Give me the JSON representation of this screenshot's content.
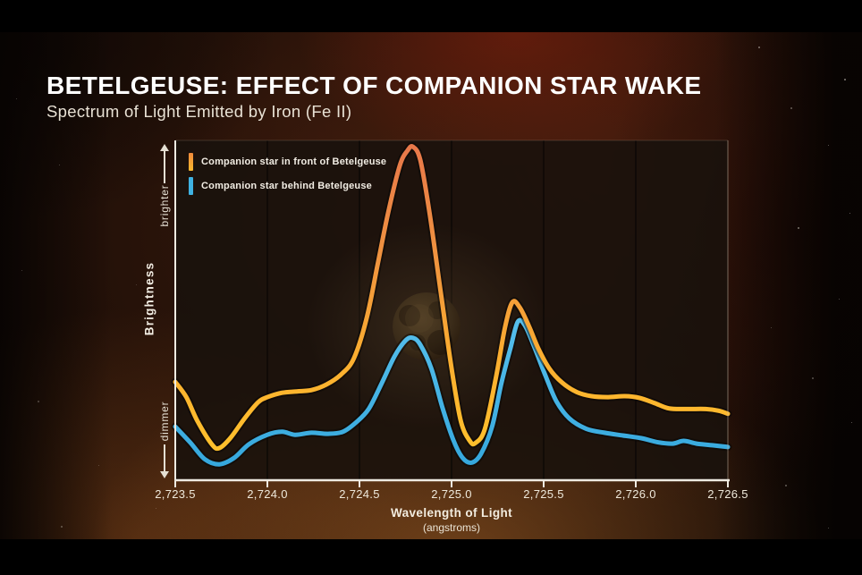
{
  "header": {
    "title": "BETELGEUSE: EFFECT OF COMPANION STAR WAKE",
    "subtitle": "Spectrum of Light Emitted by Iron (Fe II)"
  },
  "chart_data": {
    "type": "line",
    "title": "Spectrum of Light Emitted by Iron (Fe II)",
    "xlabel": "Wavelength of Light",
    "xunit": "(angstroms)",
    "ylabel": "Brightness",
    "y_axis_qualitative": [
      "dimmer",
      "brighter"
    ],
    "xlim": [
      2723.5,
      2726.5
    ],
    "ylim_relative": [
      0,
      1
    ],
    "grid": "vertical-gridlines-every-0.5-angstrom",
    "legend_position": "top-left",
    "xticks": {
      "values": [
        2723.5,
        2724.0,
        2724.5,
        2725.0,
        2725.5,
        2726.0,
        2726.5
      ],
      "labels": [
        "2,723.5",
        "2,724.0",
        "2,724.5",
        "2,725.0",
        "2,725.5",
        "2,726.0",
        "2,726.5"
      ]
    },
    "series": [
      {
        "name": "Companion star behind Betelgeuse",
        "color": "#3FB2E2",
        "points": [
          [
            2723.5,
            0.158
          ],
          [
            2723.58,
            0.112
          ],
          [
            2723.66,
            0.062
          ],
          [
            2723.74,
            0.047
          ],
          [
            2723.82,
            0.066
          ],
          [
            2723.9,
            0.106
          ],
          [
            2724.0,
            0.134
          ],
          [
            2724.08,
            0.143
          ],
          [
            2724.15,
            0.134
          ],
          [
            2724.24,
            0.14
          ],
          [
            2724.33,
            0.137
          ],
          [
            2724.41,
            0.143
          ],
          [
            2724.48,
            0.17
          ],
          [
            2724.55,
            0.21
          ],
          [
            2724.62,
            0.285
          ],
          [
            2724.69,
            0.365
          ],
          [
            2724.75,
            0.412
          ],
          [
            2724.79,
            0.42
          ],
          [
            2724.83,
            0.4
          ],
          [
            2724.89,
            0.33
          ],
          [
            2724.95,
            0.215
          ],
          [
            2725.01,
            0.118
          ],
          [
            2725.06,
            0.066
          ],
          [
            2725.11,
            0.052
          ],
          [
            2725.16,
            0.078
          ],
          [
            2725.22,
            0.158
          ],
          [
            2725.27,
            0.285
          ],
          [
            2725.32,
            0.39
          ],
          [
            2725.36,
            0.468
          ],
          [
            2725.4,
            0.455
          ],
          [
            2725.45,
            0.392
          ],
          [
            2725.51,
            0.308
          ],
          [
            2725.57,
            0.232
          ],
          [
            2725.64,
            0.182
          ],
          [
            2725.73,
            0.152
          ],
          [
            2725.83,
            0.14
          ],
          [
            2725.93,
            0.132
          ],
          [
            2726.03,
            0.124
          ],
          [
            2726.12,
            0.112
          ],
          [
            2726.2,
            0.108
          ],
          [
            2726.26,
            0.116
          ],
          [
            2726.33,
            0.108
          ],
          [
            2726.42,
            0.103
          ],
          [
            2726.5,
            0.098
          ]
        ]
      },
      {
        "name": "Companion star in front of Betelgeuse",
        "color": "#F5A030",
        "points": [
          [
            2723.5,
            0.29
          ],
          [
            2723.56,
            0.245
          ],
          [
            2723.62,
            0.175
          ],
          [
            2723.7,
            0.105
          ],
          [
            2723.74,
            0.095
          ],
          [
            2723.8,
            0.125
          ],
          [
            2723.88,
            0.185
          ],
          [
            2723.95,
            0.23
          ],
          [
            2724.0,
            0.245
          ],
          [
            2724.08,
            0.258
          ],
          [
            2724.16,
            0.262
          ],
          [
            2724.24,
            0.266
          ],
          [
            2724.32,
            0.282
          ],
          [
            2724.4,
            0.312
          ],
          [
            2724.47,
            0.36
          ],
          [
            2724.54,
            0.48
          ],
          [
            2724.6,
            0.64
          ],
          [
            2724.66,
            0.8
          ],
          [
            2724.72,
            0.93
          ],
          [
            2724.76,
            0.972
          ],
          [
            2724.79,
            0.984
          ],
          [
            2724.83,
            0.945
          ],
          [
            2724.88,
            0.79
          ],
          [
            2724.94,
            0.56
          ],
          [
            2725.0,
            0.33
          ],
          [
            2725.05,
            0.175
          ],
          [
            2725.1,
            0.115
          ],
          [
            2725.13,
            0.11
          ],
          [
            2725.18,
            0.15
          ],
          [
            2725.24,
            0.3
          ],
          [
            2725.29,
            0.45
          ],
          [
            2725.33,
            0.525
          ],
          [
            2725.37,
            0.51
          ],
          [
            2725.42,
            0.455
          ],
          [
            2725.47,
            0.39
          ],
          [
            2725.53,
            0.33
          ],
          [
            2725.6,
            0.288
          ],
          [
            2725.68,
            0.26
          ],
          [
            2725.76,
            0.248
          ],
          [
            2725.85,
            0.245
          ],
          [
            2725.94,
            0.248
          ],
          [
            2726.02,
            0.243
          ],
          [
            2726.1,
            0.228
          ],
          [
            2726.18,
            0.212
          ],
          [
            2726.28,
            0.21
          ],
          [
            2726.38,
            0.21
          ],
          [
            2726.45,
            0.205
          ],
          [
            2726.5,
            0.196
          ]
        ]
      }
    ],
    "legend_order": [
      "Companion star in front of Betelgeuse",
      "Companion star behind Betelgeuse"
    ]
  },
  "background": {
    "stars": [
      [
        848,
        52,
        2,
        0.5
      ],
      [
        884,
        120,
        2,
        0.4
      ],
      [
        944,
        88,
        2,
        0.55
      ],
      [
        926,
        162,
        1,
        0.45
      ],
      [
        892,
        254,
        2,
        0.5
      ],
      [
        938,
        334,
        1,
        0.4
      ],
      [
        950,
        238,
        1,
        0.5
      ],
      [
        908,
        422,
        2,
        0.35
      ],
      [
        952,
        472,
        1,
        0.45
      ],
      [
        878,
        542,
        2,
        0.4
      ],
      [
        926,
        590,
        1,
        0.4
      ],
      [
        66,
        184,
        1,
        0.35
      ],
      [
        24,
        302,
        1,
        0.3
      ],
      [
        42,
        448,
        2,
        0.3
      ],
      [
        152,
        318,
        1,
        0.25
      ],
      [
        110,
        520,
        1,
        0.3
      ],
      [
        68,
        588,
        2,
        0.35
      ],
      [
        18,
        110,
        1,
        0.3
      ],
      [
        174,
        568,
        1,
        0.3
      ],
      [
        862,
        366,
        1,
        0.35
      ]
    ]
  }
}
